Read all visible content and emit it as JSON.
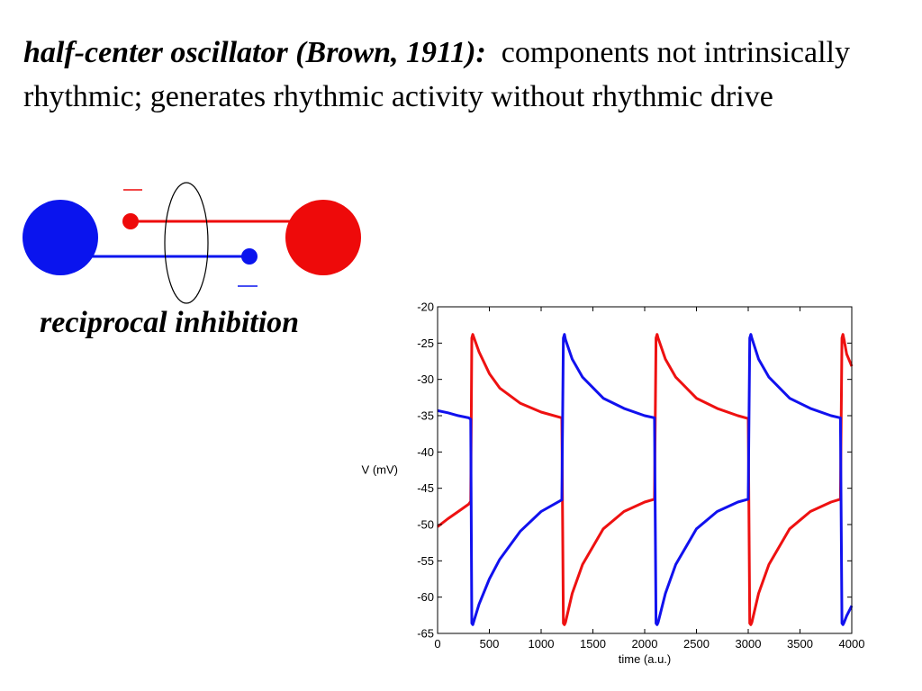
{
  "heading": {
    "lead": "half-center oscillator (Brown, 1911):",
    "rest": "components not intrinsically rhythmic; generates rhythmic activity without rhythmic drive"
  },
  "diagram": {
    "caption": "reciprocal inhibition",
    "colors": {
      "left_neuron": "#0a14ee",
      "right_neuron": "#ee0a0a",
      "loop": "#000000"
    }
  },
  "chart_data": {
    "type": "line",
    "xlabel": "time (a.u.)",
    "ylabel": "V (mV)",
    "xlim": [
      0,
      4000
    ],
    "ylim": [
      -65,
      -20
    ],
    "xticks": [
      0,
      500,
      1000,
      1500,
      2000,
      2500,
      3000,
      3500,
      4000
    ],
    "yticks": [
      -20,
      -25,
      -30,
      -35,
      -40,
      -45,
      -50,
      -55,
      -60,
      -65
    ],
    "grid": false,
    "series": [
      {
        "color": "#ee1111",
        "x": [
          0,
          100,
          200,
          300,
          320,
          330,
          340,
          400,
          500,
          600,
          800,
          1000,
          1200,
          1215,
          1225,
          1235,
          1300,
          1400,
          1600,
          1800,
          2000,
          2095,
          2110,
          2120,
          2130,
          2200,
          2300,
          2500,
          2700,
          2900,
          3000,
          3015,
          3025,
          3035,
          3100,
          3200,
          3400,
          3600,
          3800,
          3890,
          3905,
          3915,
          3925,
          3950,
          4000
        ],
        "y": [
          -50.3,
          -49.2,
          -48.2,
          -47.2,
          -46.8,
          -24.3,
          -23.8,
          -26.2,
          -29.2,
          -31.2,
          -33.3,
          -34.5,
          -35.3,
          -63.6,
          -63.8,
          -63.5,
          -59.5,
          -55.5,
          -50.6,
          -48.2,
          -46.9,
          -46.5,
          -24.3,
          -23.8,
          -24.3,
          -27.2,
          -29.7,
          -32.6,
          -34.0,
          -35.0,
          -35.4,
          -63.6,
          -63.8,
          -63.5,
          -59.5,
          -55.5,
          -50.6,
          -48.2,
          -46.9,
          -46.5,
          -24.3,
          -23.8,
          -24.5,
          -26.5,
          -28.2
        ]
      },
      {
        "color": "#1111ee",
        "x": [
          0,
          100,
          200,
          300,
          320,
          330,
          340,
          400,
          500,
          600,
          800,
          1000,
          1200,
          1215,
          1225,
          1235,
          1300,
          1400,
          1600,
          1800,
          2000,
          2095,
          2110,
          2120,
          2130,
          2200,
          2300,
          2500,
          2700,
          2900,
          3000,
          3015,
          3025,
          3035,
          3100,
          3200,
          3400,
          3600,
          3800,
          3890,
          3905,
          3915,
          3925,
          3950,
          4000
        ],
        "y": [
          -34.3,
          -34.6,
          -35.0,
          -35.3,
          -35.5,
          -63.6,
          -63.8,
          -61.0,
          -57.5,
          -54.8,
          -50.9,
          -48.2,
          -46.6,
          -24.3,
          -23.8,
          -24.5,
          -27.2,
          -29.7,
          -32.6,
          -34.0,
          -35.0,
          -35.3,
          -63.6,
          -63.8,
          -63.5,
          -59.5,
          -55.5,
          -50.6,
          -48.2,
          -46.9,
          -46.5,
          -24.3,
          -23.8,
          -24.3,
          -27.2,
          -29.7,
          -32.6,
          -34.0,
          -35.0,
          -35.3,
          -63.6,
          -63.8,
          -63.5,
          -62.6,
          -61.2
        ]
      }
    ]
  }
}
